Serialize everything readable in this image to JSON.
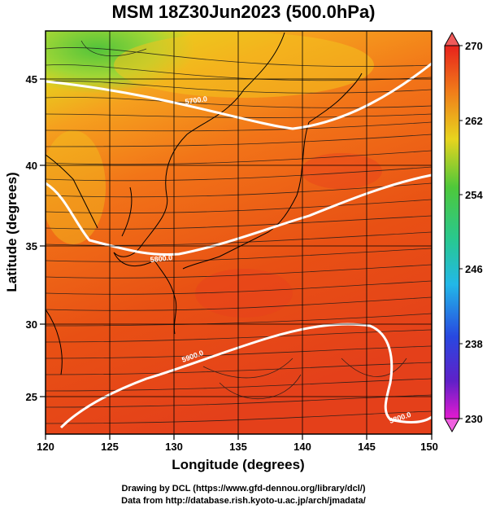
{
  "title": "MSM 18Z30Jun2023 (500.0hPa)",
  "map": {
    "xaxis": {
      "label": "Longitude (degrees)",
      "range": [
        120,
        150
      ],
      "ticks": [
        "120",
        "125",
        "130",
        "135",
        "140",
        "145",
        "150"
      ]
    },
    "yaxis": {
      "label": "Latitude  (degrees)",
      "range": [
        22.4,
        47.6
      ],
      "ticks": [
        "25",
        "30",
        "35",
        "40",
        "45"
      ]
    },
    "contour_labels": [
      "5800.0",
      "5900.0",
      "5800.0",
      "5700.0",
      "5800.0"
    ],
    "field": "temperature shading with wind streamlines and height contours",
    "colors": {
      "warm": "#e84a12",
      "mid": "#f58c1a",
      "yellow": "#e6d21e",
      "green": "#5fc83a",
      "contour": "#ffffff"
    }
  },
  "colorbar": {
    "max_label": "270",
    "min_label": "230",
    "labels": [
      "270",
      "262",
      "254",
      "246",
      "238",
      "230"
    ]
  },
  "credits": {
    "line1": "Drawing by DCL (https://www.gfd-dennou.org/library/dcl/)",
    "line2": "Data from http://database.rish.kyoto-u.ac.jp/arch/jmadata/"
  }
}
